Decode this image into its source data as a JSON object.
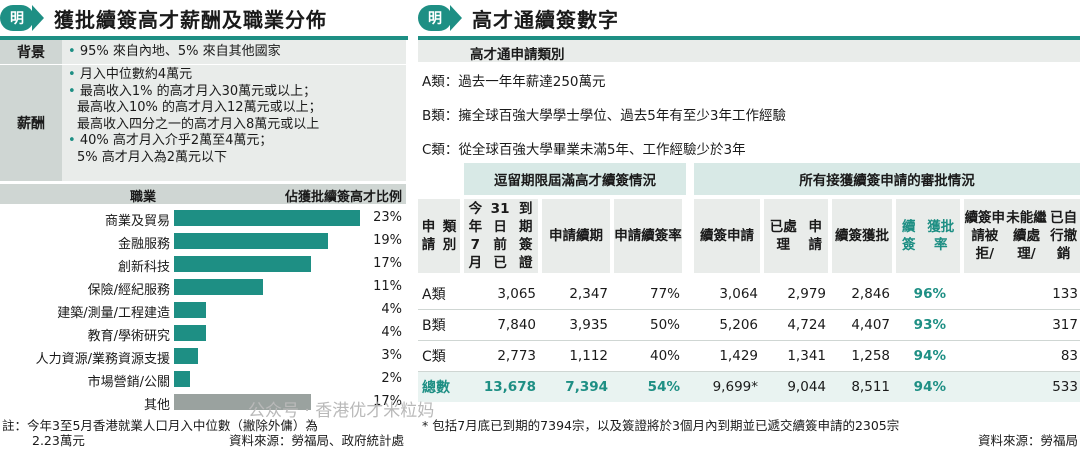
{
  "left": {
    "badge": "明",
    "title": "獲批續簽高才薪酬及職業分佈",
    "background_label": "背景",
    "background_items": [
      "95% 來自內地、5% 來自其他國家"
    ],
    "salary_label": "薪酬",
    "salary_items": [
      [
        "月入中位數約4萬元"
      ],
      [
        "最高收入1% 的高才月入30萬元或以上；",
        "最高收入10% 的高才月入12萬元或以上；",
        "最高收入四分之一的高才月入8萬元或以上"
      ],
      [
        "40% 高才月入介乎2萬至4萬元；",
        "5% 高才月入為2萬元以下"
      ]
    ],
    "note_lines": [
      "註：今年3至5月香港就業人口月入中位數（撇除外傭）為",
      "2.23萬元"
    ],
    "source": "資料來源：勞福局、政府統計處"
  },
  "chart_data": {
    "type": "bar",
    "orientation": "horizontal",
    "xlabel": "職業",
    "ylabel": "佔獲批續簽高才比例",
    "categories": [
      "商業及貿易",
      "金融服務",
      "創新科技",
      "保險/經紀服務",
      "建築/測量/工程建造",
      "教育/學術研究",
      "人力資源/業務資源支援",
      "市場營銷/公關",
      "其他"
    ],
    "values": [
      23,
      19,
      17,
      11,
      4,
      4,
      3,
      2,
      17
    ],
    "value_labels": [
      "23%",
      "19%",
      "17%",
      "11%",
      "4%",
      "4%",
      "3%",
      "2%",
      "17%"
    ],
    "highlight_last_grey": true,
    "colors": {
      "bar": "#1e8f84",
      "other": "#9aa29f"
    }
  },
  "right": {
    "badge": "明",
    "title": "高才通續簽數字",
    "subtitle": "高才通申請類別",
    "categories": [
      {
        "key": "A類：",
        "text": "過去一年年薪達250萬元"
      },
      {
        "key": "B類：",
        "text": "擁全球百強大學學士學位、過去5年有至少3年工作經驗"
      },
      {
        "key": "C類：",
        "text": "從全球百強大學畢業未滿5年、工作經驗少於3年"
      }
    ],
    "group1": "逗留期限屆滿高才續簽情況",
    "group2": "所有接獲續簽申請的審批情況",
    "headers": [
      [
        "申請",
        "類別"
      ],
      [
        "今年7月",
        "31日前已",
        "到期簽證"
      ],
      [
        "申請",
        "續期"
      ],
      [
        "申請",
        "續簽率"
      ],
      [
        "續簽",
        "申請"
      ],
      [
        "已處理",
        "申請"
      ],
      [
        "續簽",
        "獲批"
      ],
      [
        "續簽",
        "獲批率"
      ],
      [
        "續簽申請被拒/",
        "未能繼續處理/",
        "已自行撤銷"
      ]
    ],
    "rows": [
      {
        "label": "A類",
        "values": [
          "3,065",
          "2,347",
          "77%",
          "3,064",
          "2,979",
          "2,846",
          "96%",
          "133"
        ]
      },
      {
        "label": "B類",
        "values": [
          "7,840",
          "3,935",
          "50%",
          "5,206",
          "4,724",
          "4,407",
          "93%",
          "317"
        ]
      },
      {
        "label": "C類",
        "values": [
          "2,773",
          "1,112",
          "40%",
          "1,429",
          "1,341",
          "1,258",
          "94%",
          "83"
        ]
      },
      {
        "label": "總數",
        "values": [
          "13,678",
          "7,394",
          "54%",
          "9,699*",
          "9,044",
          "8,511",
          "94%",
          "533"
        ]
      }
    ],
    "footnote": "* 包括7月底已到期的7394宗，以及簽證將於3個月內到期並已遞交續簽申請的2305宗",
    "source": "資料來源：勞福局",
    "watermark": "公众号 · 香港优才米粒妈"
  },
  "colors": {
    "accent": "#1e8f84",
    "header_grey": "#cfd6d3",
    "light_grey": "#e9ecea",
    "light_teal": "#d8e9e6"
  }
}
